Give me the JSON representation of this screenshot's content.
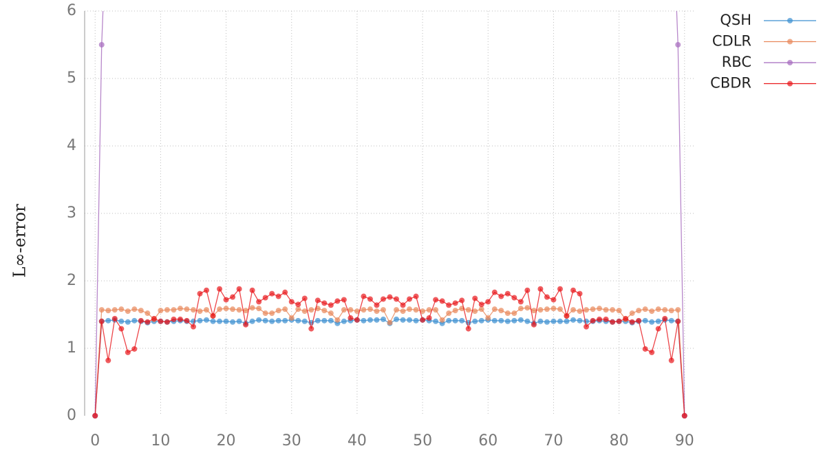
{
  "chart_data": {
    "type": "line",
    "y_label": "L∞-error",
    "x": [
      0,
      1,
      2,
      3,
      4,
      5,
      6,
      7,
      8,
      9,
      10,
      11,
      12,
      13,
      14,
      15,
      16,
      17,
      18,
      19,
      20,
      21,
      22,
      23,
      24,
      25,
      26,
      27,
      28,
      29,
      30,
      31,
      32,
      33,
      34,
      35,
      36,
      37,
      38,
      39,
      40,
      41,
      42,
      43,
      44,
      45,
      46,
      47,
      48,
      49,
      50,
      51,
      52,
      53,
      54,
      55,
      56,
      57,
      58,
      59,
      60,
      61,
      62,
      63,
      64,
      65,
      66,
      67,
      68,
      69,
      70,
      71,
      72,
      73,
      74,
      75,
      76,
      77,
      78,
      79,
      80,
      81,
      82,
      83,
      84,
      85,
      86,
      87,
      88,
      89,
      90
    ],
    "series": [
      {
        "name": "QSH",
        "color": "#3a8fd0",
        "values": [
          0,
          1.4,
          1.41,
          1.42,
          1.4,
          1.39,
          1.41,
          1.4,
          1.38,
          1.4,
          1.4,
          1.39,
          1.4,
          1.41,
          1.4,
          1.4,
          1.41,
          1.42,
          1.4,
          1.4,
          1.4,
          1.39,
          1.4,
          1.37,
          1.4,
          1.42,
          1.41,
          1.4,
          1.41,
          1.41,
          1.42,
          1.41,
          1.4,
          1.38,
          1.41,
          1.41,
          1.41,
          1.37,
          1.4,
          1.41,
          1.42,
          1.41,
          1.42,
          1.42,
          1.43,
          1.37,
          1.43,
          1.42,
          1.42,
          1.41,
          1.42,
          1.41,
          1.4,
          1.37,
          1.41,
          1.41,
          1.41,
          1.38,
          1.4,
          1.41,
          1.42,
          1.41,
          1.41,
          1.4,
          1.41,
          1.42,
          1.4,
          1.37,
          1.4,
          1.39,
          1.4,
          1.4,
          1.4,
          1.42,
          1.41,
          1.4,
          1.4,
          1.41,
          1.4,
          1.39,
          1.4,
          1.4,
          1.38,
          1.4,
          1.41,
          1.39,
          1.4,
          1.42,
          1.41,
          1.4,
          0
        ]
      },
      {
        "name": "CDLR",
        "color": "#e8875a",
        "values": [
          0,
          1.57,
          1.56,
          1.57,
          1.58,
          1.55,
          1.58,
          1.56,
          1.52,
          1.43,
          1.56,
          1.57,
          1.57,
          1.59,
          1.58,
          1.57,
          1.55,
          1.57,
          1.48,
          1.58,
          1.59,
          1.58,
          1.57,
          1.56,
          1.6,
          1.59,
          1.52,
          1.52,
          1.56,
          1.58,
          1.45,
          1.58,
          1.55,
          1.57,
          1.59,
          1.56,
          1.52,
          1.42,
          1.57,
          1.57,
          1.55,
          1.57,
          1.58,
          1.55,
          1.57,
          1.38,
          1.57,
          1.55,
          1.58,
          1.57,
          1.55,
          1.57,
          1.57,
          1.42,
          1.52,
          1.56,
          1.59,
          1.57,
          1.55,
          1.58,
          1.45,
          1.58,
          1.56,
          1.52,
          1.52,
          1.59,
          1.6,
          1.56,
          1.57,
          1.58,
          1.59,
          1.58,
          1.48,
          1.57,
          1.55,
          1.57,
          1.58,
          1.59,
          1.57,
          1.57,
          1.56,
          1.43,
          1.52,
          1.56,
          1.58,
          1.55,
          1.58,
          1.57,
          1.56,
          1.57,
          0
        ]
      },
      {
        "name": "RBC",
        "color": "#a569bd",
        "values": [
          0,
          5.5,
          8,
          null,
          null,
          null,
          null,
          null,
          null,
          null,
          null,
          null,
          null,
          null,
          null,
          null,
          null,
          null,
          null,
          null,
          null,
          null,
          null,
          null,
          null,
          null,
          null,
          null,
          null,
          null,
          null,
          null,
          null,
          null,
          null,
          null,
          null,
          null,
          null,
          null,
          null,
          null,
          null,
          null,
          null,
          null,
          null,
          null,
          null,
          null,
          null,
          null,
          null,
          null,
          null,
          null,
          null,
          null,
          null,
          null,
          null,
          null,
          null,
          null,
          null,
          null,
          null,
          null,
          null,
          null,
          null,
          null,
          null,
          null,
          null,
          null,
          null,
          null,
          null,
          null,
          null,
          null,
          null,
          null,
          null,
          null,
          null,
          null,
          8,
          5.5,
          0
        ]
      },
      {
        "name": "CBDR",
        "color": "#e8171b",
        "values": [
          0,
          1.4,
          0.82,
          1.44,
          1.29,
          0.94,
          0.99,
          1.41,
          1.39,
          1.44,
          1.4,
          1.39,
          1.43,
          1.43,
          1.41,
          1.32,
          1.81,
          1.86,
          1.48,
          1.88,
          1.72,
          1.76,
          1.88,
          1.35,
          1.86,
          1.69,
          1.75,
          1.81,
          1.77,
          1.83,
          1.69,
          1.65,
          1.74,
          1.29,
          1.71,
          1.67,
          1.64,
          1.7,
          1.72,
          1.45,
          1.42,
          1.77,
          1.73,
          1.64,
          1.73,
          1.76,
          1.73,
          1.64,
          1.73,
          1.77,
          1.42,
          1.45,
          1.72,
          1.7,
          1.64,
          1.67,
          1.71,
          1.29,
          1.74,
          1.65,
          1.69,
          1.83,
          1.77,
          1.81,
          1.75,
          1.69,
          1.86,
          1.35,
          1.88,
          1.76,
          1.72,
          1.88,
          1.48,
          1.86,
          1.81,
          1.32,
          1.41,
          1.43,
          1.43,
          1.39,
          1.4,
          1.44,
          1.39,
          1.41,
          0.99,
          0.94,
          1.29,
          1.44,
          0.82,
          1.4,
          0
        ]
      }
    ],
    "xlim": [
      -1.6,
      91.6
    ],
    "ylim": [
      0,
      6
    ],
    "xticks": [
      0,
      10,
      20,
      30,
      40,
      50,
      60,
      70,
      80,
      90
    ],
    "yticks": [
      0,
      1,
      2,
      3,
      4,
      5,
      6
    ],
    "grid": true,
    "legend": "upper right"
  }
}
